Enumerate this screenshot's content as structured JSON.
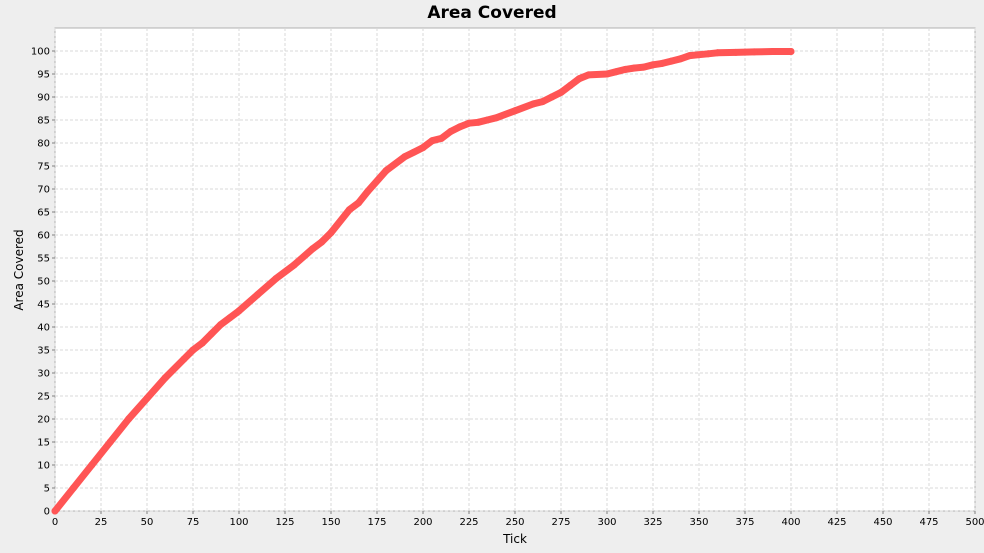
{
  "chart_data": {
    "type": "line",
    "title": "Area Covered",
    "xlabel": "Tick",
    "ylabel": "Area Covered",
    "xlim": [
      0,
      500
    ],
    "ylim": [
      0,
      105
    ],
    "xticks": [
      0,
      25,
      50,
      75,
      100,
      125,
      150,
      175,
      200,
      225,
      250,
      275,
      300,
      325,
      350,
      375,
      400,
      425,
      450,
      475,
      500
    ],
    "yticks": [
      0,
      5,
      10,
      15,
      20,
      25,
      30,
      35,
      40,
      45,
      50,
      55,
      60,
      65,
      70,
      75,
      80,
      85,
      90,
      95,
      100
    ],
    "grid": true,
    "legend": "none",
    "series": [
      {
        "color": "#ff5555",
        "x": [
          0,
          10,
          20,
          30,
          40,
          50,
          60,
          70,
          75,
          80,
          85,
          90,
          95,
          100,
          110,
          120,
          130,
          140,
          145,
          150,
          160,
          165,
          170,
          180,
          190,
          195,
          200,
          205,
          210,
          215,
          220,
          225,
          230,
          235,
          240,
          250,
          260,
          265,
          270,
          275,
          280,
          285,
          290,
          300,
          305,
          310,
          315,
          320,
          325,
          330,
          335,
          340,
          345,
          350,
          355,
          360,
          370,
          380,
          390,
          400
        ],
        "y": [
          0,
          5,
          10,
          15,
          20,
          24.5,
          29,
          33,
          35,
          36.5,
          38.5,
          40.5,
          42,
          43.5,
          47,
          50.5,
          53.5,
          57,
          58.5,
          60.5,
          65.5,
          67,
          69.5,
          74,
          77,
          78,
          79,
          80.5,
          81,
          82.5,
          83.5,
          84.3,
          84.5,
          85,
          85.5,
          87,
          88.5,
          89,
          90,
          91,
          92.5,
          94,
          94.8,
          95,
          95.5,
          96,
          96.3,
          96.5,
          97,
          97.3,
          97.8,
          98.3,
          99,
          99.2,
          99.4,
          99.6,
          99.7,
          99.8,
          99.9,
          99.9
        ]
      }
    ]
  }
}
